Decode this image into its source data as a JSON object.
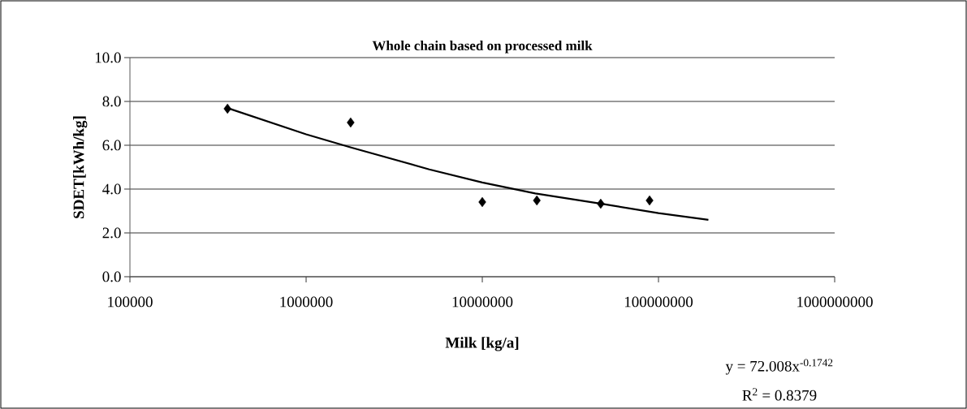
{
  "chart_data": {
    "type": "scatter",
    "title": "Whole chain based on processed milk",
    "xlabel": "Milk  [kg/a]",
    "ylabel": "SDET[kWh/kg]",
    "log": "x",
    "xlim": [
      100000,
      1000000000
    ],
    "xticks": [
      100000,
      1000000,
      10000000,
      100000000,
      1000000000
    ],
    "ylim": [
      0,
      10
    ],
    "yticks": [
      {
        "value": 0,
        "label": "0.0"
      },
      {
        "value": 2,
        "label": "2.0"
      },
      {
        "value": 4,
        "label": "4.0"
      },
      {
        "value": 6,
        "label": "6.0"
      },
      {
        "value": 8,
        "label": "8.0"
      },
      {
        "value": 10,
        "label": "10.0"
      }
    ],
    "grid": "y",
    "series": [
      {
        "color": "#000000",
        "marker": "diamond",
        "x": [
          358000,
          1790000,
          10000000,
          20400000,
          47000000,
          89000000
        ],
        "values": [
          7.67,
          7.04,
          3.41,
          3.48,
          3.33,
          3.48
        ]
      },
      {
        "type": "line",
        "color": "#000000",
        "marker": "none",
        "line_style": "solid",
        "x": [
          358000,
          1000000,
          1800000,
          5000000,
          10000000,
          20000000,
          50000000,
          100000000,
          192000000
        ],
        "values": [
          7.7,
          6.5,
          5.9,
          4.9,
          4.3,
          3.8,
          3.3,
          2.9,
          2.6
        ]
      }
    ],
    "annotations": [
      "y = 72.008x$^{-0.1742}$",
      "R$^{2}$ = 0.8379"
    ]
  }
}
